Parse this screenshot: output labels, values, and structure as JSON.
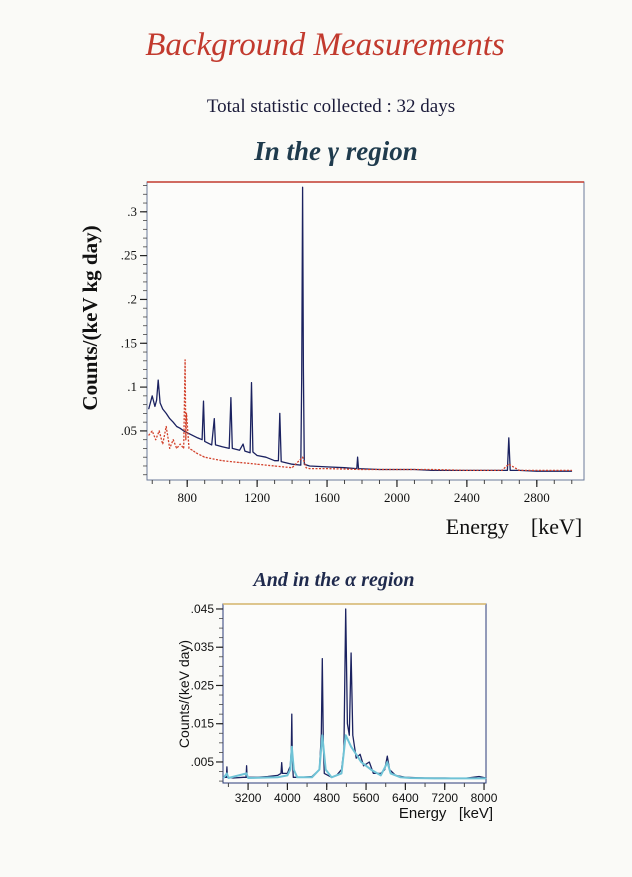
{
  "header": {
    "title": "Background Measurements",
    "subtitle": "Total statistic collected : 32 days",
    "gamma_heading": "In the γ region",
    "alpha_heading": "And in the α region"
  },
  "colors": {
    "title": "#c23a2e",
    "heading": "#1f3b4d",
    "series_dark": "#1b2260",
    "series_red": "#d2402a",
    "series_cyan": "#6fc3d6"
  },
  "chart_data": [
    {
      "type": "line",
      "title": "In the γ region",
      "xlabel": "Energy    [keV]",
      "ylabel": "Counts/(keV kg day)",
      "xlim": [
        570,
        3070
      ],
      "ylim": [
        -0.006,
        0.334
      ],
      "xticks": [
        800,
        1200,
        1600,
        2000,
        2400,
        2800
      ],
      "xtick_labels": [
        "800",
        "1200",
        "1600",
        "2000",
        "2400",
        "2800"
      ],
      "yticks": [
        0.05,
        0.1,
        0.15,
        0.2,
        0.25,
        0.3
      ],
      "ytick_labels": [
        ".05",
        ".1",
        ".15",
        ".2",
        ".25",
        ".3"
      ],
      "grid": false,
      "series": [
        {
          "name": "spectrum-solid",
          "style": "solid",
          "color": "#1b2260",
          "x": [
            580,
            600,
            615,
            625,
            634,
            645,
            660,
            680,
            700,
            720,
            740,
            760,
            780,
            800,
            830,
            860,
            885,
            893,
            900,
            940,
            955,
            962,
            1000,
            1040,
            1050,
            1058,
            1100,
            1120,
            1130,
            1160,
            1168,
            1176,
            1200,
            1250,
            1300,
            1322,
            1330,
            1338,
            1400,
            1450,
            1455,
            1460,
            1465,
            1470,
            1500,
            1600,
            1700,
            1770,
            1775,
            1780,
            1900,
            2000,
            2100,
            2200,
            2300,
            2400,
            2500,
            2600,
            2632,
            2640,
            2648,
            2700,
            2800,
            2900,
            3000
          ],
          "y": [
            0.075,
            0.09,
            0.078,
            0.085,
            0.108,
            0.082,
            0.075,
            0.07,
            0.064,
            0.06,
            0.055,
            0.053,
            0.05,
            0.048,
            0.045,
            0.042,
            0.04,
            0.084,
            0.038,
            0.034,
            0.064,
            0.034,
            0.032,
            0.03,
            0.088,
            0.03,
            0.028,
            0.035,
            0.027,
            0.025,
            0.105,
            0.026,
            0.022,
            0.02,
            0.016,
            0.016,
            0.07,
            0.015,
            0.012,
            0.011,
            0.11,
            0.328,
            0.12,
            0.012,
            0.01,
            0.009,
            0.008,
            0.007,
            0.02,
            0.007,
            0.006,
            0.006,
            0.006,
            0.005,
            0.005,
            0.005,
            0.005,
            0.005,
            0.005,
            0.042,
            0.005,
            0.005,
            0.004,
            0.004,
            0.004
          ]
        },
        {
          "name": "spectrum-dotted",
          "style": "dotted",
          "color": "#d2402a",
          "x": [
            580,
            600,
            620,
            640,
            660,
            680,
            700,
            720,
            740,
            760,
            780,
            788,
            792,
            796,
            810,
            830,
            850,
            880,
            900,
            950,
            1000,
            1050,
            1100,
            1150,
            1200,
            1250,
            1300,
            1350,
            1400,
            1460,
            1480,
            1500,
            1600,
            1800,
            2000,
            2200,
            2400,
            2600,
            2640,
            2700,
            3000
          ],
          "y": [
            0.045,
            0.05,
            0.04,
            0.05,
            0.035,
            0.055,
            0.03,
            0.04,
            0.03,
            0.035,
            0.03,
            0.131,
            0.04,
            0.07,
            0.03,
            0.028,
            0.025,
            0.022,
            0.02,
            0.018,
            0.016,
            0.015,
            0.014,
            0.013,
            0.012,
            0.011,
            0.01,
            0.009,
            0.008,
            0.02,
            0.008,
            0.007,
            0.007,
            0.006,
            0.006,
            0.006,
            0.005,
            0.005,
            0.012,
            0.005,
            0.005
          ]
        }
      ]
    },
    {
      "type": "line",
      "title": "And in the α region",
      "xlabel": "Energy   [keV]",
      "ylabel": "Counts/(keV day)",
      "xlim": [
        2690,
        8040
      ],
      "ylim": [
        -0.0005,
        0.0463
      ],
      "xticks": [
        3200,
        4000,
        4800,
        5600,
        6400,
        7200,
        8000
      ],
      "xtick_labels": [
        "3200",
        "4000",
        "4800",
        "5600",
        "6400",
        "7200",
        "8000"
      ],
      "yticks": [
        0.005,
        0.015,
        0.025,
        0.035,
        0.045
      ],
      "ytick_labels": [
        ".005",
        ".015",
        ".025",
        ".035",
        ".045"
      ],
      "grid": false,
      "series": [
        {
          "name": "alpha-dark",
          "style": "solid",
          "color": "#1b2260",
          "x": [
            2700,
            2760,
            2770,
            2780,
            2900,
            3100,
            3160,
            3170,
            3180,
            3400,
            3600,
            3800,
            3870,
            3885,
            3900,
            4000,
            4060,
            4080,
            4090,
            4100,
            4120,
            4300,
            4500,
            4650,
            4690,
            4710,
            4730,
            4750,
            4900,
            5000,
            5100,
            5150,
            5185,
            5220,
            5260,
            5295,
            5330,
            5400,
            5478,
            5550,
            5667,
            5750,
            5900,
            5980,
            6033,
            6080,
            6200,
            6400,
            6800,
            7200,
            7600,
            7900,
            8040
          ],
          "y": [
            0.001,
            0.001,
            0.0037,
            0.001,
            0.0008,
            0.001,
            0.001,
            0.004,
            0.001,
            0.001,
            0.0012,
            0.0015,
            0.002,
            0.0048,
            0.002,
            0.002,
            0.004,
            0.008,
            0.0175,
            0.006,
            0.001,
            0.001,
            0.0012,
            0.003,
            0.012,
            0.032,
            0.01,
            0.002,
            0.001,
            0.0015,
            0.003,
            0.008,
            0.045,
            0.015,
            0.012,
            0.0335,
            0.012,
            0.006,
            0.007,
            0.004,
            0.005,
            0.002,
            0.002,
            0.003,
            0.0065,
            0.003,
            0.0015,
            0.001,
            0.0008,
            0.0008,
            0.0007,
            0.0012,
            0.0008
          ]
        },
        {
          "name": "alpha-light",
          "style": "solid",
          "color": "#6fc3d6",
          "x": [
            2700,
            2770,
            2800,
            3170,
            3200,
            3800,
            4000,
            4060,
            4090,
            4130,
            4200,
            4500,
            4650,
            4710,
            4780,
            4900,
            5100,
            5185,
            5295,
            5400,
            5500,
            5600,
            5700,
            5900,
            6000,
            6033,
            6100,
            6300,
            6500,
            7000,
            8040
          ],
          "y": [
            0.0008,
            0.002,
            0.0008,
            0.002,
            0.0008,
            0.001,
            0.0015,
            0.003,
            0.009,
            0.003,
            0.001,
            0.001,
            0.003,
            0.012,
            0.003,
            0.001,
            0.002,
            0.012,
            0.009,
            0.007,
            0.005,
            0.004,
            0.003,
            0.0015,
            0.004,
            0.005,
            0.002,
            0.001,
            0.0008,
            0.0007,
            0.0007
          ]
        }
      ]
    }
  ]
}
